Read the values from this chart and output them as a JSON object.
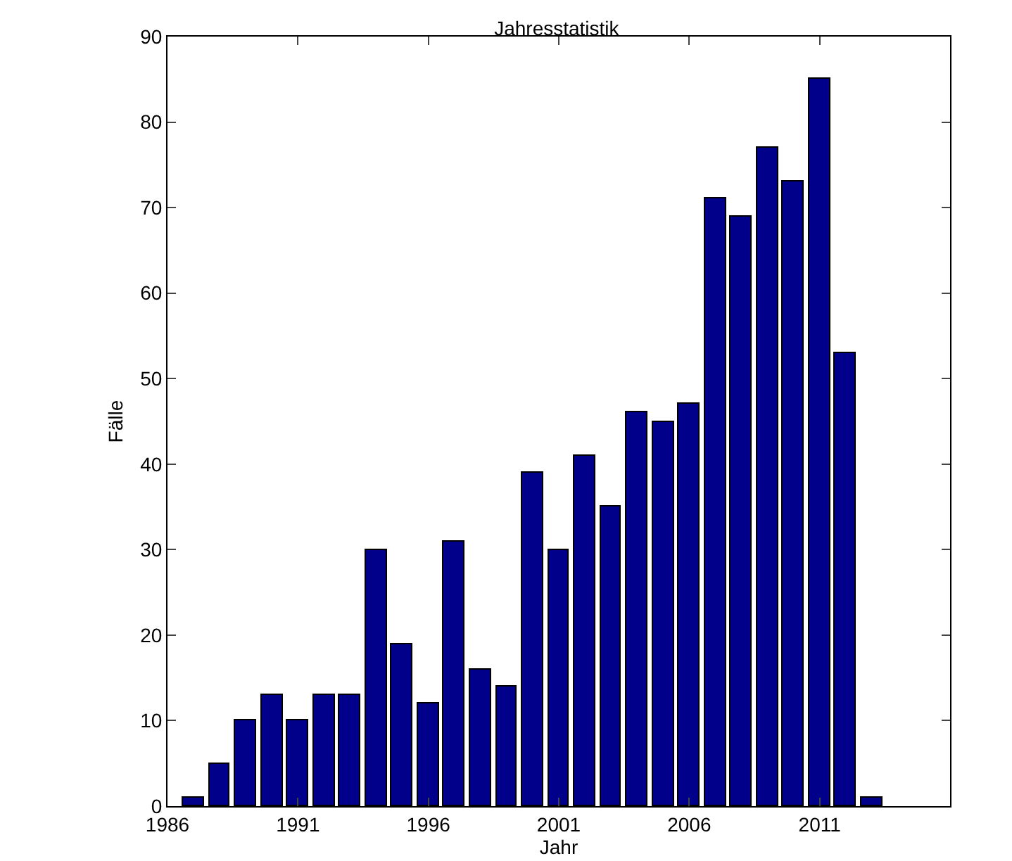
{
  "chart_data": {
    "type": "bar",
    "title": "Jahresstatistik",
    "xlabel": "Jahr",
    "ylabel": "Fälle",
    "x": [
      1987,
      1988,
      1989,
      1990,
      1991,
      1992,
      1993,
      1994,
      1995,
      1996,
      1997,
      1998,
      1999,
      2000,
      2001,
      2002,
      2003,
      2004,
      2005,
      2006,
      2007,
      2008,
      2009,
      2010,
      2011,
      2012,
      2013
    ],
    "values": [
      1,
      5,
      10,
      13,
      10,
      13,
      13,
      30,
      19,
      12,
      31,
      16,
      14,
      39,
      30,
      41,
      35,
      46,
      45,
      47,
      71,
      69,
      77,
      73,
      85,
      53,
      1
    ],
    "color": "#00008b",
    "xlim": [
      1986,
      2016
    ],
    "xticks": [
      1986,
      1991,
      1996,
      2001,
      2006,
      2011
    ],
    "ylim": [
      0,
      90
    ],
    "yticks": [
      0,
      10,
      20,
      30,
      40,
      50,
      60,
      70,
      80,
      90
    ],
    "grid": false,
    "legend": false
  }
}
